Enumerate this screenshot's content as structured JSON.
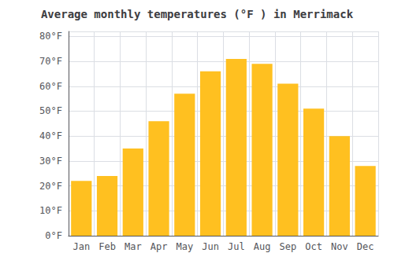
{
  "chart_data": {
    "type": "bar",
    "title": "Average monthly temperatures (°F ) in Merrimack",
    "categories": [
      "Jan",
      "Feb",
      "Mar",
      "Apr",
      "May",
      "Jun",
      "Jul",
      "Aug",
      "Sep",
      "Oct",
      "Nov",
      "Dec"
    ],
    "values": [
      22,
      24,
      35,
      46,
      57,
      66,
      71,
      69,
      61,
      51,
      40,
      28
    ],
    "color": "#FFC020",
    "ylim": [
      0,
      82
    ],
    "yticks": [
      {
        "value": 0,
        "label": "0°F"
      },
      {
        "value": 10,
        "label": "10°F"
      },
      {
        "value": 20,
        "label": "20°F"
      },
      {
        "value": 30,
        "label": "30°F"
      },
      {
        "value": 40,
        "label": "40°F"
      },
      {
        "value": 50,
        "label": "50°F"
      },
      {
        "value": 60,
        "label": "60°F"
      },
      {
        "value": 70,
        "label": "70°F"
      },
      {
        "value": 80,
        "label": "80°F"
      }
    ],
    "grid": true
  }
}
